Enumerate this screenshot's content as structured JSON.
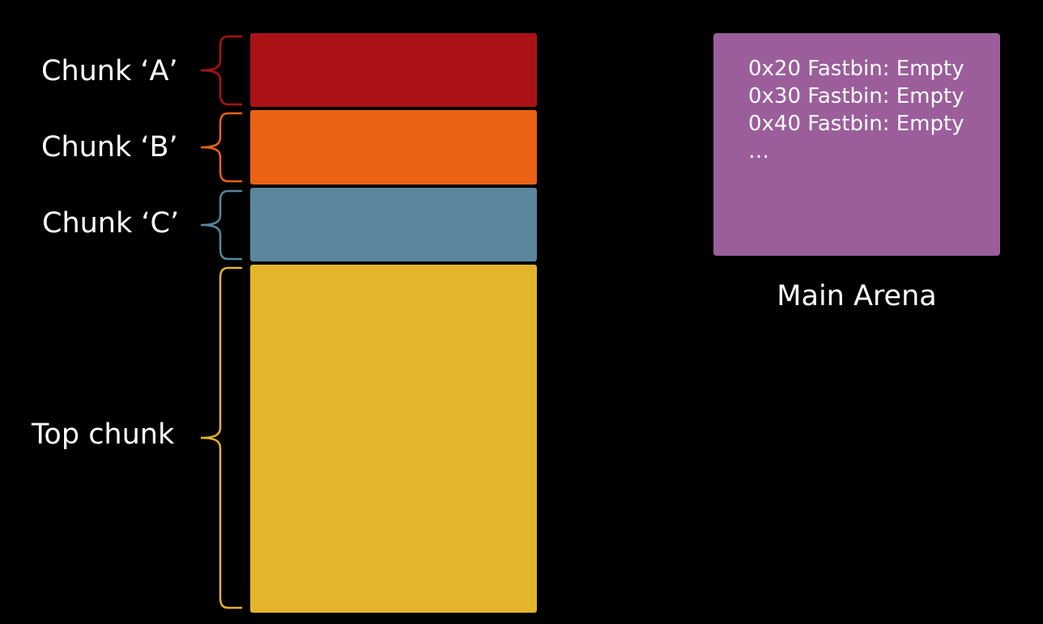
{
  "chunks": [
    {
      "label": "Chunk ‘A’",
      "color": "#ab1215"
    },
    {
      "label": "Chunk ‘B’",
      "color": "#eb6214"
    },
    {
      "label": "Chunk ‘C’",
      "color": "#5a879e"
    },
    {
      "label": "Top chunk",
      "color": "#e4b42b"
    }
  ],
  "arena": {
    "color": "#9b5e9b",
    "lines": [
      "0x20 Fastbin: Empty",
      "0x30 Fastbin: Empty",
      "0x40 Fastbin: Empty",
      "…"
    ],
    "caption": "Main Arena"
  }
}
